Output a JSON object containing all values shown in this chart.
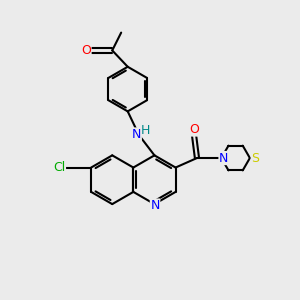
{
  "bg_color": "#ebebeb",
  "bond_color": "#000000",
  "bond_width": 1.5,
  "atom_colors": {
    "N": "#0000ff",
    "O": "#ff0000",
    "S": "#cccc00",
    "Cl": "#00aa00",
    "H": "#008888",
    "C": "#000000"
  },
  "font_size": 8.5,
  "fig_size": [
    3.0,
    3.0
  ],
  "dpi": 100
}
